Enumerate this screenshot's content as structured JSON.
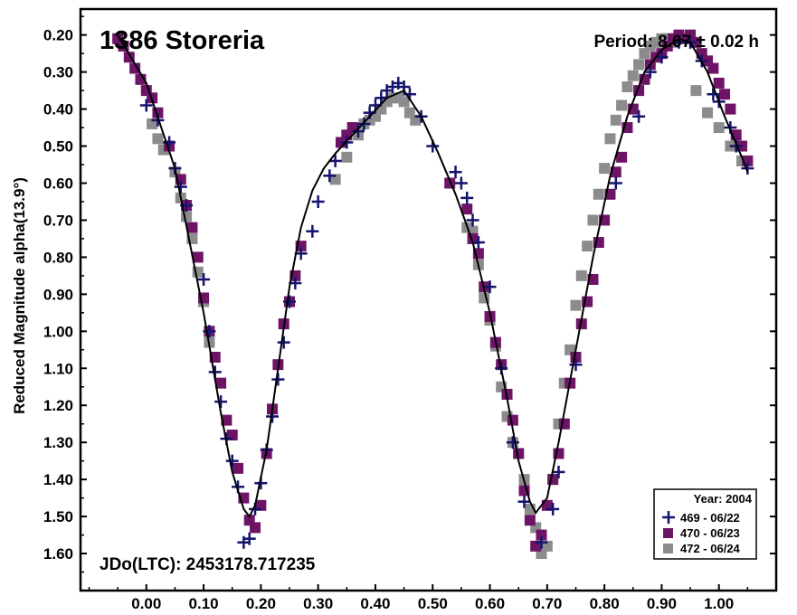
{
  "chart_data": {
    "type": "scatter",
    "title": "1386 Storeria",
    "period_text": "Period: 8.67 ± 0.02 h",
    "jdo_text": "JDo(LTC): 2453178.717235",
    "xlabel": "",
    "ylabel": "Reduced Magnitude alpha(13.9°)",
    "xlim": [
      -0.115,
      1.1
    ],
    "ylim": [
      1.7,
      0.13
    ],
    "y_inverted": true,
    "grid": false,
    "x_ticks": [
      "0.00",
      "0.10",
      "0.20",
      "0.30",
      "0.40",
      "0.50",
      "0.60",
      "0.70",
      "0.80",
      "0.90",
      "1.00"
    ],
    "y_ticks": [
      "0.20",
      "0.30",
      "0.40",
      "0.50",
      "0.60",
      "0.70",
      "0.80",
      "0.90",
      "1.00",
      "1.10",
      "1.20",
      "1.30",
      "1.40",
      "1.50",
      "1.60"
    ],
    "legend": {
      "title": "Year: 2004",
      "placement": "bottom-right",
      "entries": [
        {
          "label": "469 - 06/22",
          "marker": "plus",
          "color": "#14146e"
        },
        {
          "label": "470 - 06/23",
          "marker": "square",
          "color": "#6e1466"
        },
        {
          "label": "472 - 06/24",
          "marker": "square",
          "color": "#8c8c8c"
        }
      ]
    },
    "fit_curve": [
      [
        -0.05,
        0.2
      ],
      [
        0.0,
        0.33
      ],
      [
        0.05,
        0.56
      ],
      [
        0.1,
        0.95
      ],
      [
        0.13,
        1.22
      ],
      [
        0.15,
        1.38
      ],
      [
        0.17,
        1.48
      ],
      [
        0.18,
        1.5
      ],
      [
        0.19,
        1.47
      ],
      [
        0.21,
        1.32
      ],
      [
        0.23,
        1.1
      ],
      [
        0.25,
        0.88
      ],
      [
        0.27,
        0.72
      ],
      [
        0.29,
        0.62
      ],
      [
        0.31,
        0.56
      ],
      [
        0.33,
        0.52
      ],
      [
        0.36,
        0.47
      ],
      [
        0.39,
        0.42
      ],
      [
        0.42,
        0.37
      ],
      [
        0.45,
        0.35
      ],
      [
        0.48,
        0.42
      ],
      [
        0.51,
        0.52
      ],
      [
        0.54,
        0.63
      ],
      [
        0.57,
        0.76
      ],
      [
        0.6,
        0.95
      ],
      [
        0.63,
        1.18
      ],
      [
        0.65,
        1.35
      ],
      [
        0.67,
        1.46
      ],
      [
        0.68,
        1.49
      ],
      [
        0.7,
        1.45
      ],
      [
        0.72,
        1.3
      ],
      [
        0.75,
        1.05
      ],
      [
        0.78,
        0.8
      ],
      [
        0.81,
        0.58
      ],
      [
        0.84,
        0.42
      ],
      [
        0.87,
        0.3
      ],
      [
        0.9,
        0.24
      ],
      [
        0.93,
        0.21
      ],
      [
        0.95,
        0.22
      ],
      [
        0.98,
        0.3
      ],
      [
        1.01,
        0.42
      ],
      [
        1.04,
        0.53
      ],
      [
        1.05,
        0.57
      ]
    ],
    "series": [
      {
        "name": "469 - 06/22",
        "marker": "plus",
        "color": "#14146e",
        "points": [
          [
            0.0,
            0.39
          ],
          [
            0.02,
            0.43
          ],
          [
            0.04,
            0.49
          ],
          [
            0.05,
            0.56
          ],
          [
            0.06,
            0.61
          ],
          [
            0.07,
            0.66
          ],
          [
            0.1,
            0.86
          ],
          [
            0.11,
            1.0
          ],
          [
            0.12,
            1.11
          ],
          [
            0.13,
            1.19
          ],
          [
            0.14,
            1.29
          ],
          [
            0.15,
            1.35
          ],
          [
            0.16,
            1.42
          ],
          [
            0.17,
            1.57
          ],
          [
            0.18,
            1.56
          ],
          [
            0.19,
            1.48
          ],
          [
            0.2,
            1.41
          ],
          [
            0.21,
            1.32
          ],
          [
            0.22,
            1.23
          ],
          [
            0.23,
            1.13
          ],
          [
            0.24,
            1.03
          ],
          [
            0.25,
            0.92
          ],
          [
            0.26,
            0.87
          ],
          [
            0.27,
            0.79
          ],
          [
            0.29,
            0.73
          ],
          [
            0.3,
            0.65
          ],
          [
            0.32,
            0.58
          ],
          [
            0.33,
            0.54
          ],
          [
            0.35,
            0.49
          ],
          [
            0.37,
            0.46
          ],
          [
            0.38,
            0.44
          ],
          [
            0.39,
            0.41
          ],
          [
            0.4,
            0.39
          ],
          [
            0.41,
            0.37
          ],
          [
            0.42,
            0.35
          ],
          [
            0.43,
            0.34
          ],
          [
            0.44,
            0.33
          ],
          [
            0.45,
            0.34
          ],
          [
            0.46,
            0.36
          ],
          [
            0.48,
            0.42
          ],
          [
            0.5,
            0.5
          ],
          [
            0.54,
            0.57
          ],
          [
            0.55,
            0.6
          ],
          [
            0.56,
            0.64
          ],
          [
            0.57,
            0.7
          ],
          [
            0.58,
            0.76
          ],
          [
            0.6,
            0.88
          ],
          [
            0.62,
            1.1
          ],
          [
            0.64,
            1.3
          ],
          [
            0.66,
            1.46
          ],
          [
            0.69,
            1.57
          ],
          [
            0.71,
            1.48
          ],
          [
            0.72,
            1.38
          ],
          [
            0.75,
            1.09
          ],
          [
            0.82,
            0.6
          ],
          [
            0.86,
            0.42
          ],
          [
            0.88,
            0.3
          ],
          [
            0.9,
            0.26
          ],
          [
            0.93,
            0.22
          ],
          [
            0.95,
            0.22
          ],
          [
            0.97,
            0.27
          ],
          [
            0.99,
            0.36
          ],
          [
            1.0,
            0.38
          ],
          [
            1.02,
            0.45
          ],
          [
            1.03,
            0.5
          ],
          [
            1.05,
            0.56
          ]
        ]
      },
      {
        "name": "470 - 06/23",
        "marker": "square",
        "color": "#6e1466",
        "points": [
          [
            -0.05,
            0.21
          ],
          [
            -0.04,
            0.23
          ],
          [
            -0.03,
            0.26
          ],
          [
            -0.02,
            0.29
          ],
          [
            -0.01,
            0.32
          ],
          [
            0.0,
            0.35
          ],
          [
            0.01,
            0.37
          ],
          [
            0.02,
            0.41
          ],
          [
            0.04,
            0.5
          ],
          [
            0.06,
            0.59
          ],
          [
            0.07,
            0.66
          ],
          [
            0.08,
            0.72
          ],
          [
            0.09,
            0.8
          ],
          [
            0.1,
            0.91
          ],
          [
            0.11,
            1.0
          ],
          [
            0.12,
            1.07
          ],
          [
            0.13,
            1.14
          ],
          [
            0.14,
            1.24
          ],
          [
            0.15,
            1.28
          ],
          [
            0.16,
            1.37
          ],
          [
            0.17,
            1.45
          ],
          [
            0.18,
            1.51
          ],
          [
            0.19,
            1.53
          ],
          [
            0.2,
            1.47
          ],
          [
            0.21,
            1.33
          ],
          [
            0.22,
            1.21
          ],
          [
            0.23,
            1.09
          ],
          [
            0.24,
            0.98
          ],
          [
            0.25,
            0.92
          ],
          [
            0.26,
            0.85
          ],
          [
            0.27,
            0.77
          ],
          [
            0.34,
            0.49
          ],
          [
            0.35,
            0.47
          ],
          [
            0.36,
            0.45
          ],
          [
            0.53,
            0.6
          ],
          [
            0.56,
            0.67
          ],
          [
            0.57,
            0.75
          ],
          [
            0.58,
            0.79
          ],
          [
            0.59,
            0.88
          ],
          [
            0.6,
            0.96
          ],
          [
            0.61,
            1.03
          ],
          [
            0.62,
            1.09
          ],
          [
            0.63,
            1.17
          ],
          [
            0.64,
            1.24
          ],
          [
            0.65,
            1.33
          ],
          [
            0.66,
            1.43
          ],
          [
            0.67,
            1.51
          ],
          [
            0.68,
            1.58
          ],
          [
            0.69,
            1.55
          ],
          [
            0.7,
            1.47
          ],
          [
            0.71,
            1.4
          ],
          [
            0.72,
            1.33
          ],
          [
            0.73,
            1.25
          ],
          [
            0.74,
            1.14
          ],
          [
            0.75,
            1.07
          ],
          [
            0.76,
            0.98
          ],
          [
            0.77,
            0.92
          ],
          [
            0.78,
            0.86
          ],
          [
            0.79,
            0.76
          ],
          [
            0.8,
            0.7
          ],
          [
            0.81,
            0.63
          ],
          [
            0.82,
            0.57
          ],
          [
            0.83,
            0.53
          ],
          [
            0.84,
            0.45
          ],
          [
            0.85,
            0.4
          ],
          [
            0.86,
            0.35
          ],
          [
            0.87,
            0.32
          ],
          [
            0.88,
            0.28
          ],
          [
            0.89,
            0.26
          ],
          [
            0.9,
            0.25
          ],
          [
            0.91,
            0.23
          ],
          [
            0.92,
            0.21
          ],
          [
            0.93,
            0.2
          ],
          [
            0.94,
            0.21
          ],
          [
            0.95,
            0.2
          ],
          [
            0.96,
            0.22
          ],
          [
            0.97,
            0.25
          ],
          [
            0.98,
            0.27
          ],
          [
            0.99,
            0.29
          ],
          [
            1.0,
            0.33
          ],
          [
            1.01,
            0.36
          ],
          [
            1.02,
            0.4
          ],
          [
            1.03,
            0.47
          ],
          [
            1.04,
            0.5
          ],
          [
            1.05,
            0.54
          ]
        ]
      },
      {
        "name": "472 - 06/24",
        "marker": "square",
        "color": "#8c8c8c",
        "points": [
          [
            0.01,
            0.44
          ],
          [
            0.02,
            0.48
          ],
          [
            0.03,
            0.51
          ],
          [
            0.05,
            0.57
          ],
          [
            0.06,
            0.64
          ],
          [
            0.07,
            0.69
          ],
          [
            0.08,
            0.75
          ],
          [
            0.09,
            0.84
          ],
          [
            0.1,
            0.92
          ],
          [
            0.11,
            1.03
          ],
          [
            0.33,
            0.59
          ],
          [
            0.35,
            0.53
          ],
          [
            0.37,
            0.47
          ],
          [
            0.38,
            0.44
          ],
          [
            0.39,
            0.43
          ],
          [
            0.4,
            0.42
          ],
          [
            0.41,
            0.4
          ],
          [
            0.42,
            0.38
          ],
          [
            0.43,
            0.37
          ],
          [
            0.44,
            0.37
          ],
          [
            0.45,
            0.38
          ],
          [
            0.46,
            0.41
          ],
          [
            0.47,
            0.43
          ],
          [
            0.56,
            0.72
          ],
          [
            0.57,
            0.73
          ],
          [
            0.58,
            0.82
          ],
          [
            0.59,
            0.91
          ],
          [
            0.6,
            0.97
          ],
          [
            0.61,
            1.04
          ],
          [
            0.62,
            1.15
          ],
          [
            0.63,
            1.23
          ],
          [
            0.64,
            1.3
          ],
          [
            0.65,
            1.33
          ],
          [
            0.66,
            1.4
          ],
          [
            0.67,
            1.48
          ],
          [
            0.68,
            1.53
          ],
          [
            0.69,
            1.6
          ],
          [
            0.7,
            1.58
          ],
          [
            0.71,
            1.4
          ],
          [
            0.72,
            1.25
          ],
          [
            0.73,
            1.14
          ],
          [
            0.74,
            1.05
          ],
          [
            0.75,
            0.93
          ],
          [
            0.76,
            0.85
          ],
          [
            0.77,
            0.77
          ],
          [
            0.78,
            0.7
          ],
          [
            0.79,
            0.63
          ],
          [
            0.8,
            0.56
          ],
          [
            0.81,
            0.48
          ],
          [
            0.82,
            0.43
          ],
          [
            0.83,
            0.39
          ],
          [
            0.84,
            0.34
          ],
          [
            0.85,
            0.31
          ],
          [
            0.86,
            0.28
          ],
          [
            0.87,
            0.25
          ],
          [
            0.88,
            0.23
          ],
          [
            0.89,
            0.22
          ],
          [
            0.9,
            0.21
          ],
          [
            0.91,
            0.21
          ],
          [
            0.92,
            0.22
          ],
          [
            0.96,
            0.35
          ],
          [
            0.98,
            0.41
          ],
          [
            1.0,
            0.45
          ],
          [
            1.02,
            0.5
          ],
          [
            1.04,
            0.54
          ]
        ]
      }
    ]
  }
}
